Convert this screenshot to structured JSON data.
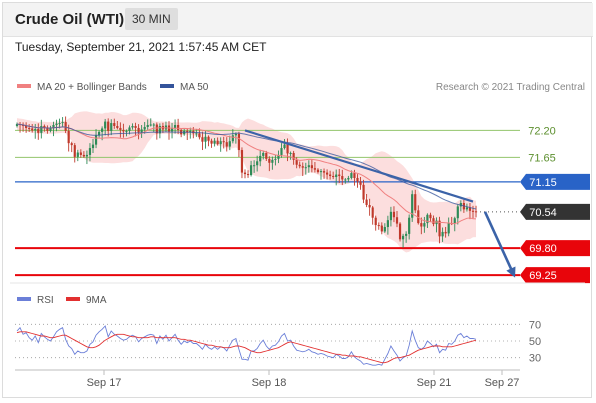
{
  "header": {
    "title": "Crude Oil (WTI)",
    "timeframe": "30 MIN"
  },
  "timestamp": "Tuesday, September 21, 2021 1:57:45 AM CET",
  "legend": {
    "ma20_bb": "MA 20 + Bollinger Bands",
    "ma50": "MA 50",
    "copyright": "Research © 2021 Trading Central",
    "rsi": "RSI",
    "ma9": "9MA"
  },
  "colors": {
    "bull": "#2e8b57",
    "bear": "#c0392b",
    "bollinger": "#f9c2c2",
    "ma20": "#f08080",
    "ma50": "#34549b",
    "resistance": "#92c56b",
    "pivot": "#2963c7",
    "support": "#e8050b",
    "arrow": "#3b63a8",
    "last": "#333333",
    "rsi": "#6b7fd8",
    "rsi_ma": "#e23030"
  },
  "chart_data": [
    {
      "type": "candlestick",
      "title": "Crude Oil (WTI)",
      "timeframe": "30 MIN",
      "xlabel": "",
      "ylabel": "",
      "x_ticks": [
        "Sep 17",
        "Sep 18",
        "Sep 21",
        "Sep 27"
      ],
      "ylim": [
        69.15,
        72.82
      ],
      "grid": false,
      "legend_position": "top-left",
      "close_series": [
        72.33,
        72.31,
        72.3,
        72.25,
        72.24,
        72.2,
        72.23,
        72.15,
        72.29,
        72.26,
        72.19,
        72.24,
        72.31,
        72.34,
        72.35,
        72.37,
        72.19,
        71.94,
        71.9,
        71.66,
        71.75,
        71.7,
        71.67,
        71.7,
        71.84,
        71.91,
        72.1,
        72.17,
        72.24,
        72.38,
        72.19,
        72.35,
        72.29,
        72.25,
        72.21,
        72.18,
        72.19,
        72.26,
        72.29,
        72.25,
        72.16,
        72.22,
        72.27,
        72.31,
        72.32,
        72.32,
        72.14,
        72.29,
        72.22,
        72.3,
        72.18,
        72.25,
        72.31,
        72.21,
        72.12,
        72.19,
        72.16,
        72.19,
        72.14,
        72.14,
        72.06,
        71.97,
        72.07,
        71.99,
        71.93,
        71.99,
        71.92,
        71.98,
        71.96,
        71.87,
        71.98,
        72.1,
        72.13,
        71.8,
        71.34,
        71.31,
        71.29,
        71.49,
        71.49,
        71.57,
        71.68,
        71.74,
        71.62,
        71.54,
        71.6,
        71.62,
        71.7,
        71.84,
        71.91,
        71.73,
        71.74,
        71.6,
        71.5,
        71.47,
        71.44,
        71.45,
        71.49,
        71.43,
        71.4,
        71.35,
        71.37,
        71.34,
        71.3,
        71.27,
        71.25,
        71.3,
        71.27,
        71.2,
        71.2,
        71.23,
        71.33,
        71.23,
        71.16,
        71.09,
        70.79,
        70.68,
        70.63,
        70.42,
        70.27,
        70.26,
        70.14,
        70.23,
        70.37,
        70.54,
        70.43,
        70.3,
        69.98,
        70.05,
        70.09,
        70.42,
        70.9,
        70.57,
        70.31,
        70.24,
        70.31,
        70.48,
        70.41,
        70.29,
        70.36,
        70.04,
        70.13,
        70.1,
        70.31,
        70.3,
        70.41,
        70.65,
        70.72,
        70.59,
        70.63,
        70.56,
        70.55,
        70.54
      ],
      "series": [
        {
          "name": "MA 20 + Bollinger Bands",
          "role": "band"
        },
        {
          "name": "MA 50",
          "role": "average"
        }
      ],
      "levels": [
        {
          "value": 72.2,
          "label": "72.20",
          "kind": "resistance",
          "style": "thin"
        },
        {
          "value": 71.65,
          "label": "71.65",
          "kind": "resistance",
          "style": "thin"
        },
        {
          "value": 71.15,
          "label": "71.15",
          "kind": "pivot",
          "style": "line"
        },
        {
          "value": 70.54,
          "label": "70.54",
          "kind": "last",
          "style": "dotted"
        },
        {
          "value": 69.8,
          "label": "69.80",
          "kind": "support",
          "style": "thick"
        },
        {
          "value": 69.25,
          "label": "69.25",
          "kind": "support",
          "style": "thick"
        }
      ],
      "trendline": [
        [
          72.2,
          70.75
        ]
      ],
      "forecast_arrow": {
        "from": 70.54,
        "to": 69.25,
        "direction": "down"
      }
    },
    {
      "type": "line",
      "title": "",
      "ylim": [
        20,
        80
      ],
      "y_ticks": [
        70,
        50,
        30
      ],
      "series": [
        {
          "name": "RSI",
          "values": [
            62,
            66,
            58,
            60,
            54,
            51,
            56,
            48,
            59,
            55,
            52,
            50,
            55,
            61,
            64,
            66,
            52,
            44,
            41,
            34,
            38,
            36,
            36,
            38,
            46,
            49,
            57,
            61,
            64,
            68,
            55,
            62,
            58,
            56,
            53,
            51,
            52,
            55,
            57,
            55,
            49,
            53,
            55,
            57,
            58,
            57,
            47,
            56,
            52,
            57,
            50,
            54,
            58,
            51,
            46,
            50,
            48,
            50,
            47,
            47,
            44,
            40,
            46,
            42,
            40,
            43,
            40,
            43,
            42,
            38,
            45,
            51,
            53,
            40,
            28,
            28,
            27,
            38,
            38,
            41,
            47,
            51,
            44,
            40,
            44,
            45,
            49,
            56,
            59,
            50,
            51,
            44,
            39,
            38,
            37,
            38,
            40,
            37,
            36,
            34,
            35,
            34,
            32,
            31,
            30,
            34,
            32,
            29,
            29,
            31,
            37,
            31,
            28,
            26,
            22,
            23,
            22,
            21,
            21,
            22,
            21,
            28,
            35,
            44,
            38,
            33,
            26,
            30,
            32,
            45,
            62,
            51,
            42,
            40,
            43,
            50,
            47,
            43,
            46,
            36,
            40,
            39,
            47,
            46,
            50,
            57,
            59,
            54,
            56,
            53,
            53,
            52
          ]
        },
        {
          "name": "9MA",
          "values": [
            60,
            61,
            61,
            61,
            60,
            59,
            58,
            57,
            56,
            56,
            55,
            54,
            54,
            55,
            56,
            57,
            57,
            55,
            53,
            51,
            49,
            47,
            45,
            43,
            42,
            42,
            43,
            45,
            48,
            51,
            53,
            55,
            57,
            58,
            58,
            58,
            57,
            56,
            55,
            55,
            54,
            54,
            54,
            54,
            55,
            55,
            54,
            54,
            54,
            54,
            54,
            54,
            54,
            53,
            52,
            52,
            51,
            51,
            50,
            49,
            48,
            47,
            46,
            45,
            45,
            44,
            43,
            43,
            42,
            42,
            42,
            43,
            44,
            44,
            43,
            42,
            40,
            38,
            37,
            36,
            36,
            37,
            38,
            39,
            40,
            41,
            42,
            44,
            46,
            48,
            49,
            48,
            47,
            46,
            45,
            44,
            43,
            42,
            41,
            40,
            39,
            38,
            37,
            36,
            35,
            34,
            34,
            33,
            33,
            32,
            32,
            32,
            31,
            31,
            30,
            29,
            28,
            27,
            26,
            25,
            24,
            24,
            25,
            27,
            29,
            30,
            30,
            31,
            32,
            33,
            35,
            37,
            39,
            40,
            41,
            42,
            43,
            44,
            44,
            44,
            43,
            43,
            43,
            43,
            44,
            45,
            46,
            47,
            48,
            49,
            50,
            51
          ]
        }
      ]
    }
  ]
}
